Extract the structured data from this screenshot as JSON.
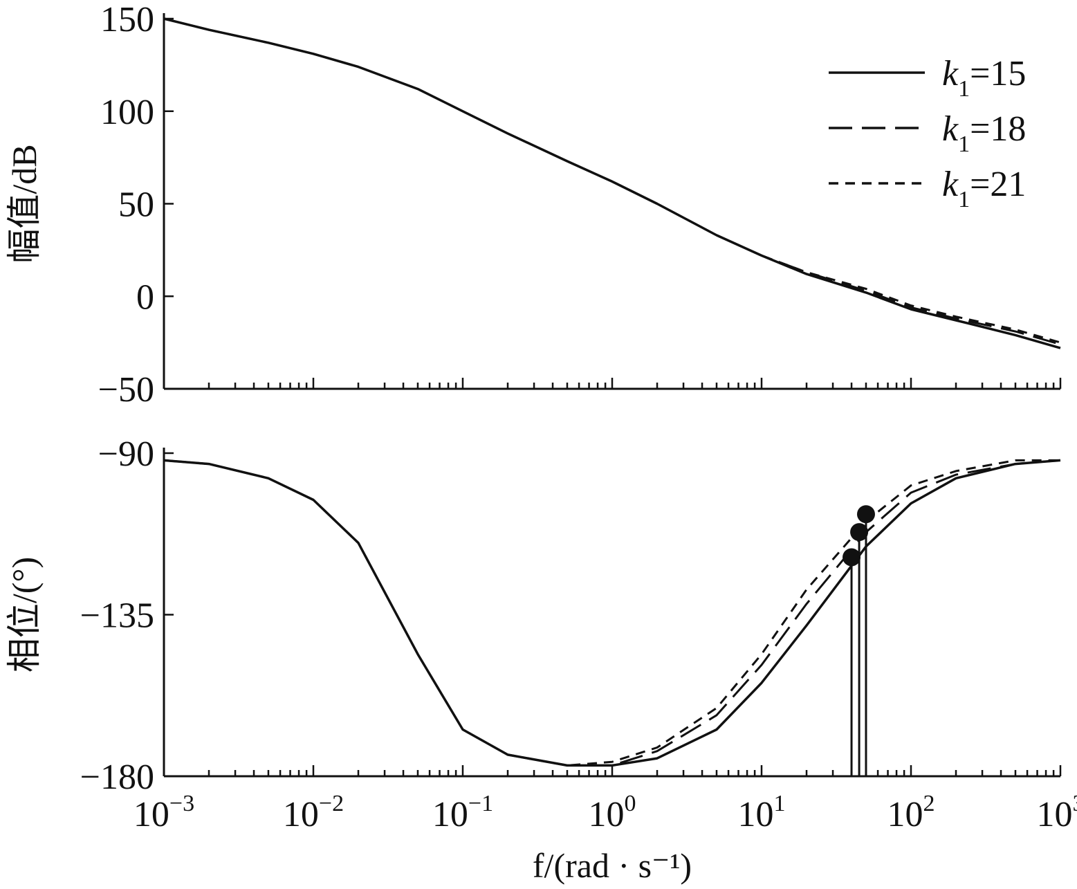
{
  "chart_data": [
    {
      "type": "line",
      "panel": "magnitude",
      "ylabel": "幅值/dB",
      "xscale": "log",
      "xlim": [
        0.001,
        1000
      ],
      "ylim": [
        -50,
        150
      ],
      "yticks": [
        150,
        100,
        50,
        0,
        -50
      ],
      "ytick_labels": [
        "150",
        "100",
        "50",
        "0",
        "−50"
      ],
      "legend_placement": "top-right",
      "legend": [
        {
          "k": "k",
          "sub": "1",
          "eq": "=15"
        },
        {
          "k": "k",
          "sub": "1",
          "eq": "=18"
        },
        {
          "k": "k",
          "sub": "1",
          "eq": "=21"
        }
      ],
      "series": [
        {
          "name": "k1=15",
          "style": "solid",
          "x": [
            0.001,
            0.002,
            0.005,
            0.01,
            0.02,
            0.05,
            0.1,
            0.2,
            0.5,
            1,
            2,
            5,
            10,
            20,
            50,
            100,
            200,
            500,
            1000
          ],
          "y": [
            150,
            144,
            137,
            131,
            124,
            112,
            100,
            88,
            73,
            62,
            50,
            33,
            22,
            12,
            2,
            -7,
            -13,
            -21,
            -28
          ]
        },
        {
          "name": "k1=18",
          "style": "dashed",
          "x": [
            0.001,
            0.002,
            0.005,
            0.01,
            0.02,
            0.05,
            0.1,
            0.2,
            0.5,
            1,
            2,
            5,
            10,
            20,
            50,
            100,
            200,
            500,
            1000
          ],
          "y": [
            150,
            144,
            137,
            131,
            124,
            112,
            100,
            88,
            73,
            62,
            50,
            33,
            22,
            13,
            3,
            -6,
            -12,
            -19,
            -26
          ]
        },
        {
          "name": "k1=21",
          "style": "dotted",
          "x": [
            0.001,
            0.002,
            0.005,
            0.01,
            0.02,
            0.05,
            0.1,
            0.2,
            0.5,
            1,
            2,
            5,
            10,
            20,
            50,
            100,
            200,
            500,
            1000
          ],
          "y": [
            150,
            144,
            137,
            131,
            124,
            112,
            100,
            88,
            73,
            62,
            50,
            33,
            22,
            13,
            4,
            -5,
            -11,
            -18,
            -25
          ]
        }
      ]
    },
    {
      "type": "line",
      "panel": "phase",
      "ylabel": "相位/(°)",
      "xlabel": "f/(rad · s⁻¹)",
      "xscale": "log",
      "xlim": [
        0.001,
        1000
      ],
      "ylim": [
        -180,
        -90
      ],
      "yticks": [
        -90,
        -135,
        -180
      ],
      "ytick_labels": [
        "−90",
        "−135",
        "−180"
      ],
      "xtick_values": [
        0.001,
        0.01,
        0.1,
        1,
        10,
        100,
        1000
      ],
      "xtick_labels": [
        {
          "base": "10",
          "exp": "−3"
        },
        {
          "base": "10",
          "exp": "−2"
        },
        {
          "base": "10",
          "exp": "−1"
        },
        {
          "base": "10",
          "exp": "0"
        },
        {
          "base": "10",
          "exp": "1"
        },
        {
          "base": "10",
          "exp": "2"
        },
        {
          "base": "10",
          "exp": "3"
        }
      ],
      "series": [
        {
          "name": "k1=15",
          "style": "solid",
          "x": [
            0.001,
            0.002,
            0.005,
            0.01,
            0.02,
            0.05,
            0.1,
            0.2,
            0.5,
            1,
            2,
            5,
            10,
            20,
            50,
            100,
            200,
            500,
            1000
          ],
          "y": [
            -92,
            -93,
            -97,
            -103,
            -115,
            -146,
            -167,
            -174,
            -177,
            -177,
            -175,
            -167,
            -154,
            -138,
            -116,
            -104,
            -97,
            -93,
            -92
          ]
        },
        {
          "name": "k1=18",
          "style": "dashed",
          "x": [
            0.001,
            0.002,
            0.005,
            0.01,
            0.02,
            0.05,
            0.1,
            0.2,
            0.5,
            1,
            2,
            5,
            10,
            20,
            50,
            100,
            200,
            500,
            1000
          ],
          "y": [
            -92,
            -93,
            -97,
            -103,
            -115,
            -146,
            -167,
            -174,
            -177,
            -177,
            -173,
            -163,
            -149,
            -132,
            -112,
            -101,
            -96,
            -93,
            -92
          ]
        },
        {
          "name": "k1=21",
          "style": "dotted",
          "x": [
            0.001,
            0.002,
            0.005,
            0.01,
            0.02,
            0.05,
            0.1,
            0.2,
            0.5,
            1,
            2,
            5,
            10,
            20,
            50,
            100,
            200,
            500,
            1000
          ],
          "y": [
            -92,
            -93,
            -97,
            -103,
            -115,
            -146,
            -167,
            -174,
            -177,
            -176,
            -172,
            -161,
            -146,
            -128,
            -109,
            -99,
            -95,
            -92,
            -92
          ]
        }
      ],
      "markers": [
        {
          "x": 40,
          "y": -119
        },
        {
          "x": 45,
          "y": -112
        },
        {
          "x": 50,
          "y": -107
        }
      ]
    }
  ]
}
